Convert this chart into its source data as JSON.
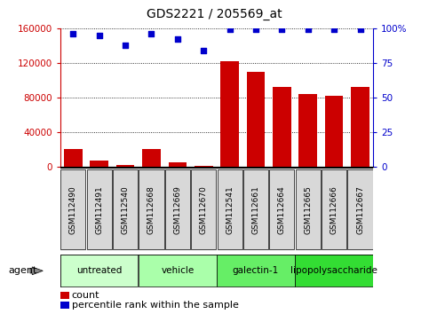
{
  "title": "GDS2221 / 205569_at",
  "samples": [
    "GSM112490",
    "GSM112491",
    "GSM112540",
    "GSM112668",
    "GSM112669",
    "GSM112670",
    "GSM112541",
    "GSM112661",
    "GSM112664",
    "GSM112665",
    "GSM112666",
    "GSM112667"
  ],
  "counts": [
    20000,
    7000,
    2000,
    20000,
    5000,
    1000,
    122000,
    110000,
    92000,
    84000,
    82000,
    92000
  ],
  "percentile": [
    96,
    95,
    88,
    96,
    92,
    84,
    99,
    99,
    99,
    99,
    99,
    99
  ],
  "bar_color": "#cc0000",
  "dot_color": "#0000cc",
  "ylim_left": [
    0,
    160000
  ],
  "ylim_right": [
    0,
    100
  ],
  "yticks_left": [
    0,
    40000,
    80000,
    120000,
    160000
  ],
  "yticks_right": [
    0,
    25,
    50,
    75,
    100
  ],
  "ytick_labels_left": [
    "0",
    "40000",
    "80000",
    "120000",
    "160000"
  ],
  "ytick_labels_right": [
    "0",
    "25",
    "50",
    "75",
    "100%"
  ],
  "groups": [
    {
      "label": "untreated",
      "start": 0,
      "end": 3,
      "color": "#ccffcc"
    },
    {
      "label": "vehicle",
      "start": 3,
      "end": 6,
      "color": "#aaffaa"
    },
    {
      "label": "galectin-1",
      "start": 6,
      "end": 9,
      "color": "#66ee66"
    },
    {
      "label": "lipopolysaccharide",
      "start": 9,
      "end": 12,
      "color": "#33dd33"
    }
  ],
  "agent_label": "agent",
  "legend_count_label": "count",
  "legend_pct_label": "percentile rank within the sample",
  "plot_bg_color": "#ffffff",
  "left_axis_color": "#cc0000",
  "right_axis_color": "#0000cc"
}
